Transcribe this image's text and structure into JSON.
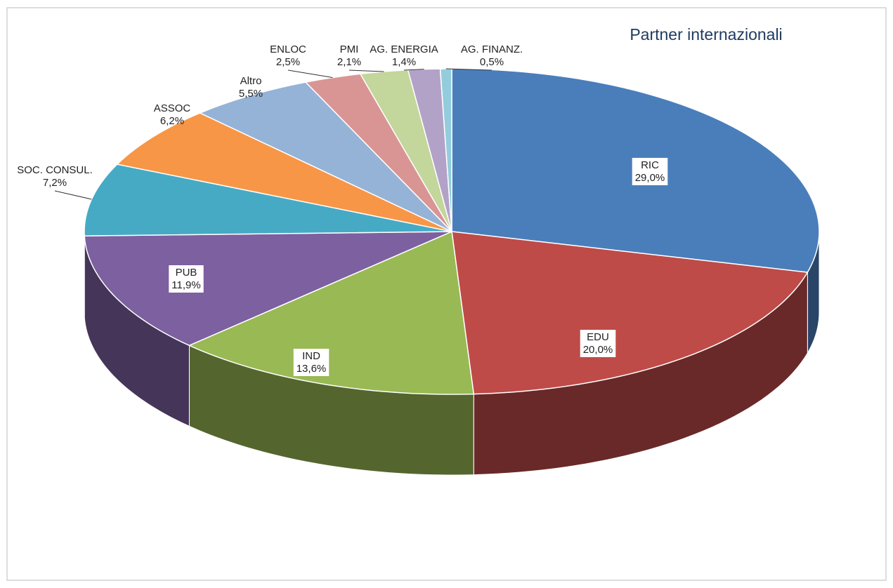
{
  "chart_data": {
    "type": "pie",
    "title": "Partner internazionali",
    "categories": [
      "RIC",
      "EDU",
      "IND",
      "PUB",
      "SOC. CONSUL.",
      "ASSOC",
      "Altro",
      "ENLOC",
      "PMI",
      "AG. ENERGIA",
      "AG. FINANZ."
    ],
    "values": [
      29.0,
      20.0,
      13.6,
      11.9,
      7.2,
      6.2,
      5.5,
      2.5,
      2.1,
      1.4,
      0.5
    ],
    "value_labels": [
      "29,0%",
      "20,0%",
      "13,6%",
      "11,9%",
      "7,2%",
      "6,2%",
      "5,5%",
      "2,5%",
      "2,1%",
      "1,4%",
      "0,5%"
    ],
    "colors": [
      "#4a7ebb",
      "#be4b48",
      "#98b954",
      "#7d60a0",
      "#46aac5",
      "#f79646",
      "#95b3d7",
      "#d99594",
      "#c3d69b",
      "#b3a2c7",
      "#93cddd"
    ]
  }
}
